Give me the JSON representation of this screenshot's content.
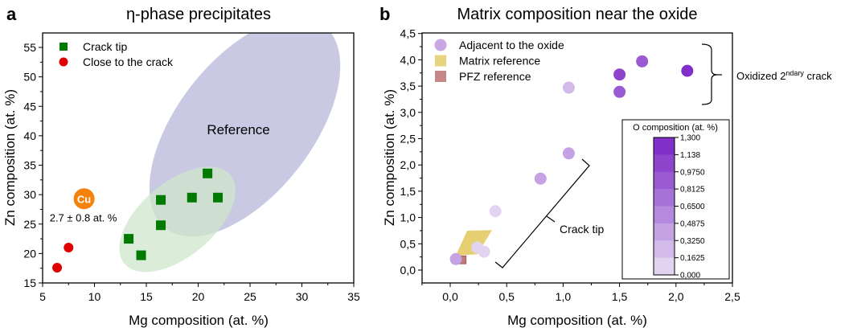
{
  "chart_data": [
    {
      "panel": "a",
      "type": "scatter",
      "title": "η-phase precipitates",
      "xlabel": "Mg composition (at. %)",
      "ylabel": "Zn composition (at. %)",
      "xlim": [
        5,
        35
      ],
      "ylim": [
        15,
        57
      ],
      "xticks": [
        5,
        10,
        15,
        20,
        25,
        30,
        35
      ],
      "yticks": [
        15,
        20,
        25,
        30,
        35,
        40,
        45,
        50,
        55
      ],
      "legend_position": "top-left",
      "series": [
        {
          "name": "Crack tip",
          "marker": "square",
          "color": "#007a00",
          "points": [
            [
              13.3,
              22.5
            ],
            [
              14.5,
              19.7
            ],
            [
              16.4,
              29.1
            ],
            [
              16.4,
              24.8
            ],
            [
              19.4,
              29.5
            ],
            [
              20.9,
              33.6
            ],
            [
              21.9,
              29.5
            ]
          ]
        },
        {
          "name": "Close to the crack",
          "marker": "circle",
          "color": "#e00000",
          "points": [
            [
              6.4,
              17.6
            ],
            [
              7.5,
              21.0
            ]
          ]
        }
      ],
      "regions": [
        {
          "name": "Reference",
          "color": "#c9c9e4",
          "center": [
            24.5,
            41.5
          ],
          "label": "Reference"
        },
        {
          "name": "Crack tip region",
          "color": "#cfe6cc",
          "center": [
            18.0,
            25.8
          ]
        }
      ],
      "annotations": [
        {
          "text": "Cu",
          "color": "#f5820a",
          "at": [
            9.0,
            29.3
          ]
        },
        {
          "text": "2.7 ± 0.8 at. %",
          "at": [
            9.0,
            26.1
          ]
        }
      ]
    },
    {
      "panel": "b",
      "type": "scatter",
      "title": "Matrix composition near the oxide",
      "xlabel": "Mg composition (at. %)",
      "ylabel": "Zn composition (at. %)",
      "xlim": [
        -0.25,
        2.5
      ],
      "ylim": [
        -0.26,
        4.5
      ],
      "xticks": [
        "0,0",
        "0,5",
        "1,0",
        "1,5",
        "2,0",
        "2,5"
      ],
      "xtick_values": [
        0,
        0.5,
        1.0,
        1.5,
        2.0,
        2.5
      ],
      "yticks": [
        "0,0",
        "0,5",
        "1,0",
        "1,5",
        "2,0",
        "2,5",
        "3,0",
        "3,5",
        "4,0",
        "4,5"
      ],
      "ytick_values": [
        0,
        0.5,
        1.0,
        1.5,
        2.0,
        2.5,
        3.0,
        3.5,
        4.0,
        4.5
      ],
      "legend_position": "top-left",
      "legend": [
        {
          "name": "Adjacent to the oxide",
          "marker": "circle",
          "color": "#c9a5e6"
        },
        {
          "name": "Matrix reference",
          "marker": "square",
          "color": "#e6cf72"
        },
        {
          "name": "PFZ reference",
          "marker": "square",
          "color": "#c07a7a"
        }
      ],
      "series": [
        {
          "name": "Adjacent to the oxide",
          "marker": "circle",
          "points": [
            {
              "mg": 0.05,
              "zn": 0.21,
              "o": 0.4
            },
            {
              "mg": 0.24,
              "zn": 0.43,
              "o": 0.15
            },
            {
              "mg": 0.3,
              "zn": 0.35,
              "o": 0.15
            },
            {
              "mg": 0.4,
              "zn": 1.12,
              "o": 0.15
            },
            {
              "mg": 0.8,
              "zn": 1.74,
              "o": 0.45
            },
            {
              "mg": 1.05,
              "zn": 2.22,
              "o": 0.45
            },
            {
              "mg": 1.05,
              "zn": 3.47,
              "o": 0.2
            },
            {
              "mg": 1.5,
              "zn": 3.72,
              "o": 1.1
            },
            {
              "mg": 1.5,
              "zn": 3.39,
              "o": 0.85
            },
            {
              "mg": 1.7,
              "zn": 3.97,
              "o": 0.85
            },
            {
              "mg": 2.1,
              "zn": 3.79,
              "o": 1.25
            }
          ]
        }
      ],
      "regions": [
        {
          "name": "Matrix reference",
          "color": "#e6cf72",
          "polygon": [
            [
              0.15,
              0.75
            ],
            [
              0.37,
              0.76
            ],
            [
              0.24,
              0.3
            ],
            [
              0.05,
              0.28
            ]
          ]
        },
        {
          "name": "PFZ reference",
          "color": "#c07a7a",
          "rect": [
            0.06,
            0.14,
            0.12,
            0.27
          ]
        }
      ],
      "annotations": [
        {
          "text": "Crack tip"
        },
        {
          "text": "Oxidized 2",
          "sup": "ndary",
          "tail": " crack"
        }
      ],
      "colorbar": {
        "title": "O composition (at. %)",
        "ticks": [
          "1,300",
          "1,138",
          "0,9750",
          "0,8125",
          "0,6500",
          "0,4875",
          "0,3250",
          "0,1625",
          "0,000"
        ],
        "tick_values": [
          1.3,
          1.138,
          0.975,
          0.8125,
          0.65,
          0.4875,
          0.325,
          0.1625,
          0
        ],
        "colors": [
          "#8030c8",
          "#8e45cc",
          "#9a5ad2",
          "#a772d8",
          "#b58ade",
          "#c4a2e4",
          "#d2bbea",
          "#e2d4f1"
        ]
      }
    }
  ]
}
